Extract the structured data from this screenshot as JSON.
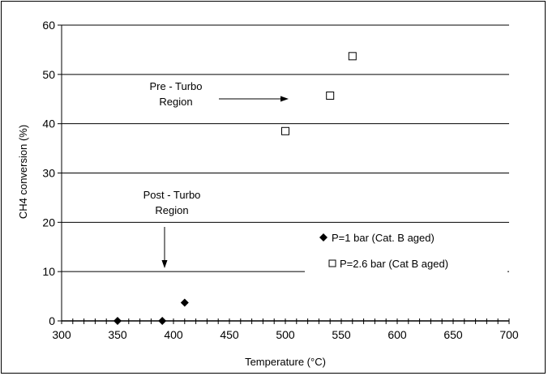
{
  "chart_data": {
    "type": "scatter",
    "xlabel": "Temperature (°C)",
    "ylabel": "CH4 conversion (%)",
    "xlim": [
      300,
      700
    ],
    "ylim": [
      0,
      60
    ],
    "x_ticks": [
      "300",
      "350",
      "400",
      "450",
      "500",
      "550",
      "600",
      "650",
      "700"
    ],
    "y_ticks": [
      "0",
      "10",
      "20",
      "30",
      "40",
      "50",
      "60"
    ],
    "grid": "horizontal",
    "legend_placement": "bottom-right",
    "series": [
      {
        "name": "P=1 bar (Cat. B aged)",
        "marker": "filled-diamond",
        "x": [
          350,
          390,
          410
        ],
        "y": [
          0,
          0,
          3.7
        ]
      },
      {
        "name": "P=2.6 bar (Cat B aged)",
        "marker": "open-square",
        "x": [
          500,
          540,
          560
        ],
        "y": [
          38.5,
          45.7,
          53.7
        ]
      }
    ],
    "annotations": [
      {
        "line1": "Pre - Turbo",
        "line2": "Region",
        "arrow": "right"
      },
      {
        "line1": "Post - Turbo",
        "line2": "Region",
        "arrow": "down"
      }
    ]
  }
}
